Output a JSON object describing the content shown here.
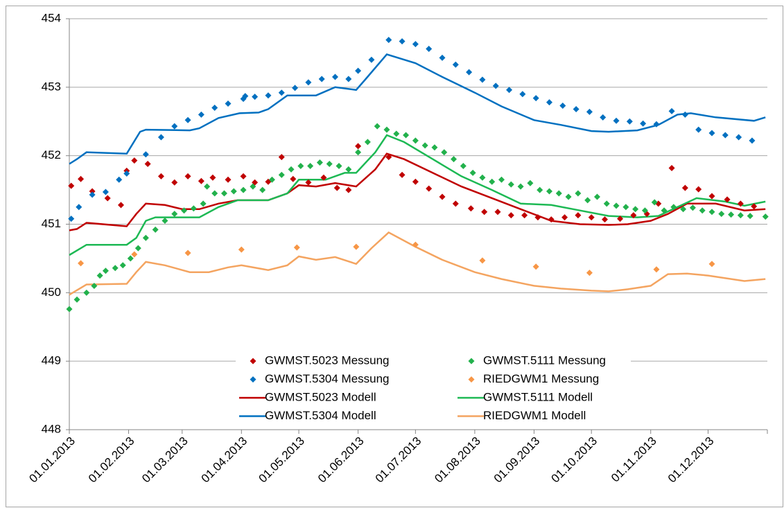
{
  "chart_data": {
    "type": "line",
    "xlim": [
      "2013-01-01",
      "2014-01-01"
    ],
    "xticks": [
      {
        "value": "2013-01-01",
        "label": "01.01.2013"
      },
      {
        "value": "2013-02-01",
        "label": "01.02.2013"
      },
      {
        "value": "2013-03-01",
        "label": "01.03.2013"
      },
      {
        "value": "2013-04-01",
        "label": "01.04.2013"
      },
      {
        "value": "2013-05-01",
        "label": "01.05.2013"
      },
      {
        "value": "2013-06-01",
        "label": "01.06.2013"
      },
      {
        "value": "2013-07-01",
        "label": "01.07.2013"
      },
      {
        "value": "2013-08-01",
        "label": "01.08.2013"
      },
      {
        "value": "2013-09-01",
        "label": "01.09.2013"
      },
      {
        "value": "2013-10-01",
        "label": "01.10.2013"
      },
      {
        "value": "2013-11-01",
        "label": "01.11.2013"
      },
      {
        "value": "2013-12-01",
        "label": "01.12.2013"
      },
      {
        "value": "2014-01-01",
        "label": null
      }
    ],
    "ylim": [
      448,
      454
    ],
    "yticks": [
      448,
      449,
      450,
      451,
      452,
      453,
      454
    ],
    "grid": true,
    "series": [
      {
        "name": "GWMST.5023 Messung",
        "style": "markers",
        "color": "#c00000",
        "x": [
          "2013-01-02",
          "2013-01-07",
          "2013-01-13",
          "2013-01-21",
          "2013-01-28",
          "2013-01-31",
          "2013-02-04",
          "2013-02-11",
          "2013-02-18",
          "2013-02-25",
          "2013-03-04",
          "2013-03-11",
          "2013-03-17",
          "2013-03-25",
          "2013-04-02",
          "2013-04-08",
          "2013-04-15",
          "2013-04-22",
          "2013-04-28",
          "2013-05-06",
          "2013-05-14",
          "2013-05-21",
          "2013-05-27",
          "2013-06-01",
          "2013-06-17",
          "2013-06-24",
          "2013-07-01",
          "2013-07-08",
          "2013-07-15",
          "2013-07-22",
          "2013-07-30",
          "2013-08-06",
          "2013-08-13",
          "2013-08-20",
          "2013-08-27",
          "2013-09-03",
          "2013-09-10",
          "2013-09-17",
          "2013-09-24",
          "2013-10-01",
          "2013-10-08",
          "2013-10-16",
          "2013-10-23",
          "2013-10-30",
          "2013-11-05",
          "2013-11-12",
          "2013-11-19",
          "2013-11-26",
          "2013-12-03",
          "2013-12-11",
          "2013-12-18",
          "2013-12-25"
        ],
        "values": [
          451.56,
          451.66,
          451.48,
          451.38,
          451.28,
          451.78,
          451.93,
          451.88,
          451.7,
          451.61,
          451.7,
          451.63,
          451.68,
          451.65,
          451.7,
          451.61,
          451.62,
          451.98,
          451.66,
          451.61,
          451.68,
          451.53,
          451.5,
          452.14,
          451.98,
          451.72,
          451.62,
          451.52,
          451.4,
          451.3,
          451.23,
          451.18,
          451.18,
          451.13,
          451.13,
          451.1,
          451.07,
          451.1,
          451.13,
          451.1,
          451.07,
          451.08,
          451.13,
          451.15,
          451.3,
          451.82,
          451.53,
          451.51,
          451.41,
          451.36,
          451.3,
          451.26
        ]
      },
      {
        "name": "GWMST.5111 Messung",
        "style": "markers",
        "color": "#22b14c",
        "x": [
          "2013-01-01",
          "2013-01-05",
          "2013-01-10",
          "2013-01-14",
          "2013-01-17",
          "2013-01-20",
          "2013-01-25",
          "2013-01-29",
          "2013-02-02",
          "2013-02-06",
          "2013-02-10",
          "2013-02-15",
          "2013-02-20",
          "2013-02-25",
          "2013-03-02",
          "2013-03-07",
          "2013-03-12",
          "2013-03-14",
          "2013-03-18",
          "2013-03-23",
          "2013-03-28",
          "2013-04-02",
          "2013-04-07",
          "2013-04-12",
          "2013-04-17",
          "2013-04-22",
          "2013-04-27",
          "2013-05-02",
          "2013-05-07",
          "2013-05-12",
          "2013-05-17",
          "2013-05-22",
          "2013-05-27",
          "2013-06-01",
          "2013-06-06",
          "2013-06-11",
          "2013-06-16",
          "2013-06-21",
          "2013-06-26",
          "2013-07-01",
          "2013-07-06",
          "2013-07-11",
          "2013-07-16",
          "2013-07-21",
          "2013-07-26",
          "2013-07-31",
          "2013-08-05",
          "2013-08-10",
          "2013-08-15",
          "2013-08-20",
          "2013-08-25",
          "2013-08-30",
          "2013-09-04",
          "2013-09-09",
          "2013-09-14",
          "2013-09-19",
          "2013-09-24",
          "2013-09-29",
          "2013-10-04",
          "2013-10-09",
          "2013-10-14",
          "2013-10-19",
          "2013-10-24",
          "2013-10-29",
          "2013-11-03",
          "2013-11-08",
          "2013-11-13",
          "2013-11-18",
          "2013-11-23",
          "2013-11-28",
          "2013-12-03",
          "2013-12-08",
          "2013-12-13",
          "2013-12-18",
          "2013-12-23",
          "2013-12-31"
        ],
        "values": [
          449.76,
          449.9,
          450.0,
          450.1,
          450.25,
          450.32,
          450.36,
          450.4,
          450.5,
          450.65,
          450.8,
          450.92,
          451.05,
          451.15,
          451.2,
          451.23,
          451.3,
          451.55,
          451.45,
          451.45,
          451.48,
          451.5,
          451.55,
          451.5,
          451.65,
          451.72,
          451.8,
          451.85,
          451.85,
          451.9,
          451.88,
          451.85,
          451.8,
          452.05,
          452.2,
          452.43,
          452.38,
          452.32,
          452.3,
          452.22,
          452.15,
          452.12,
          452.05,
          451.95,
          451.85,
          451.75,
          451.68,
          451.62,
          451.65,
          451.58,
          451.55,
          451.6,
          451.5,
          451.48,
          451.45,
          451.4,
          451.45,
          451.35,
          451.4,
          451.3,
          451.27,
          451.25,
          451.22,
          451.2,
          451.32,
          451.2,
          451.25,
          451.22,
          451.24,
          451.2,
          451.18,
          451.15,
          451.14,
          451.13,
          451.12,
          451.11
        ]
      },
      {
        "name": "GWMST.5304 Messung",
        "style": "markers",
        "color": "#0070c0",
        "x": [
          "2013-01-02",
          "2013-01-06",
          "2013-01-13",
          "2013-01-20",
          "2013-01-27",
          "2013-01-31",
          "2013-02-10",
          "2013-02-18",
          "2013-02-25",
          "2013-03-04",
          "2013-03-11",
          "2013-03-18",
          "2013-03-25",
          "2013-04-02",
          "2013-04-03",
          "2013-04-08",
          "2013-04-15",
          "2013-04-22",
          "2013-04-29",
          "2013-05-06",
          "2013-05-13",
          "2013-05-20",
          "2013-05-27",
          "2013-06-01",
          "2013-06-08",
          "2013-06-17",
          "2013-06-24",
          "2013-07-01",
          "2013-07-08",
          "2013-07-15",
          "2013-07-22",
          "2013-07-29",
          "2013-08-05",
          "2013-08-12",
          "2013-08-19",
          "2013-08-26",
          "2013-09-02",
          "2013-09-09",
          "2013-09-16",
          "2013-09-23",
          "2013-09-30",
          "2013-10-07",
          "2013-10-14",
          "2013-10-21",
          "2013-10-28",
          "2013-11-04",
          "2013-11-12",
          "2013-11-19",
          "2013-11-26",
          "2013-12-03",
          "2013-12-10",
          "2013-12-17",
          "2013-12-24"
        ],
        "values": [
          451.08,
          451.25,
          451.43,
          451.47,
          451.65,
          451.74,
          452.02,
          452.27,
          452.43,
          452.52,
          452.6,
          452.7,
          452.76,
          452.83,
          452.87,
          452.86,
          452.88,
          452.92,
          452.99,
          453.07,
          453.12,
          453.15,
          453.12,
          453.24,
          453.4,
          453.69,
          453.67,
          453.63,
          453.56,
          453.43,
          453.33,
          453.22,
          453.11,
          453.02,
          452.96,
          452.9,
          452.84,
          452.78,
          452.73,
          452.68,
          452.64,
          452.56,
          452.51,
          452.5,
          452.47,
          452.46,
          452.65,
          452.6,
          452.38,
          452.33,
          452.3,
          452.27,
          452.22
        ]
      },
      {
        "name": "RIEDGWM1 Messung",
        "style": "markers",
        "color": "#f79646",
        "x": [
          "2013-01-07",
          "2013-02-04",
          "2013-03-04",
          "2013-04-01",
          "2013-04-30",
          "2013-05-31",
          "2013-07-01",
          "2013-08-05",
          "2013-09-02",
          "2013-09-30",
          "2013-11-04",
          "2013-12-03"
        ],
        "values": [
          450.43,
          450.56,
          450.58,
          450.63,
          450.66,
          450.67,
          450.7,
          450.47,
          450.38,
          450.29,
          450.34,
          450.42
        ]
      },
      {
        "name": "GWMST.5023 Modell",
        "style": "line",
        "color": "#c00000",
        "x": [
          "2013-01-01",
          "2013-01-05",
          "2013-01-10",
          "2013-01-31",
          "2013-02-05",
          "2013-02-10",
          "2013-02-20",
          "2013-03-01",
          "2013-03-10",
          "2013-03-20",
          "2013-03-30",
          "2013-04-15",
          "2013-04-25",
          "2013-05-01",
          "2013-05-10",
          "2013-05-20",
          "2013-05-31",
          "2013-06-10",
          "2013-06-16",
          "2013-06-25",
          "2013-07-10",
          "2013-07-25",
          "2013-08-10",
          "2013-08-25",
          "2013-09-10",
          "2013-09-25",
          "2013-10-10",
          "2013-10-20",
          "2013-11-01",
          "2013-11-10",
          "2013-11-20",
          "2013-12-05",
          "2013-12-20",
          "2013-12-31"
        ],
        "values": [
          450.91,
          450.93,
          451.02,
          450.97,
          451.15,
          451.3,
          451.28,
          451.22,
          451.22,
          451.3,
          451.35,
          451.35,
          451.45,
          451.57,
          451.55,
          451.6,
          451.55,
          451.8,
          452.03,
          451.95,
          451.75,
          451.55,
          451.38,
          451.22,
          451.05,
          451.0,
          450.99,
          451.0,
          451.05,
          451.15,
          451.3,
          451.3,
          451.2,
          451.22
        ]
      },
      {
        "name": "GWMST.5111 Modell",
        "style": "line",
        "color": "#1db954",
        "x": [
          "2013-01-01",
          "2013-01-10",
          "2013-01-31",
          "2013-02-05",
          "2013-02-10",
          "2013-02-15",
          "2013-03-10",
          "2013-03-20",
          "2013-03-30",
          "2013-04-15",
          "2013-04-25",
          "2013-05-01",
          "2013-05-15",
          "2013-05-25",
          "2013-05-31",
          "2013-06-10",
          "2013-06-16",
          "2013-06-25",
          "2013-07-10",
          "2013-07-25",
          "2013-08-10",
          "2013-08-25",
          "2013-09-10",
          "2013-09-25",
          "2013-10-10",
          "2013-10-25",
          "2013-11-05",
          "2013-11-15",
          "2013-11-25",
          "2013-12-10",
          "2013-12-20",
          "2013-12-31"
        ],
        "values": [
          450.55,
          450.7,
          450.7,
          450.8,
          451.05,
          451.1,
          451.1,
          451.25,
          451.35,
          451.35,
          451.45,
          451.65,
          451.65,
          451.75,
          451.75,
          452.05,
          452.3,
          452.2,
          451.95,
          451.7,
          451.5,
          451.3,
          451.28,
          451.2,
          451.12,
          451.1,
          451.12,
          451.25,
          451.38,
          451.33,
          451.27,
          451.33
        ]
      },
      {
        "name": "GWMST.5304 Modell",
        "style": "line",
        "color": "#0070c0",
        "x": [
          "2013-01-01",
          "2013-01-05",
          "2013-01-10",
          "2013-01-31",
          "2013-02-07",
          "2013-02-10",
          "2013-03-05",
          "2013-03-10",
          "2013-03-20",
          "2013-03-31",
          "2013-04-10",
          "2013-04-15",
          "2013-04-25",
          "2013-05-10",
          "2013-05-20",
          "2013-05-31",
          "2013-06-05",
          "2013-06-16",
          "2013-07-01",
          "2013-07-15",
          "2013-08-01",
          "2013-08-15",
          "2013-09-01",
          "2013-09-15",
          "2013-10-01",
          "2013-10-10",
          "2013-10-25",
          "2013-11-05",
          "2013-11-15",
          "2013-11-22",
          "2013-12-05",
          "2013-12-25",
          "2013-12-31"
        ],
        "values": [
          451.88,
          451.95,
          452.05,
          452.03,
          452.35,
          452.38,
          452.37,
          452.4,
          452.55,
          452.62,
          452.63,
          452.68,
          452.88,
          452.88,
          453.0,
          452.96,
          453.12,
          453.48,
          453.35,
          453.15,
          452.92,
          452.72,
          452.52,
          452.45,
          452.36,
          452.35,
          452.37,
          452.45,
          452.6,
          452.62,
          452.56,
          452.51,
          452.56
        ]
      },
      {
        "name": "RIEDGWM1 Modell",
        "style": "line",
        "color": "#f4a460",
        "x": [
          "2013-01-01",
          "2013-01-10",
          "2013-01-31",
          "2013-02-05",
          "2013-02-10",
          "2013-02-20",
          "2013-03-05",
          "2013-03-15",
          "2013-03-25",
          "2013-04-01",
          "2013-04-15",
          "2013-04-25",
          "2013-05-01",
          "2013-05-10",
          "2013-05-20",
          "2013-05-31",
          "2013-06-08",
          "2013-06-17",
          "2013-07-01",
          "2013-07-15",
          "2013-08-01",
          "2013-08-15",
          "2013-09-01",
          "2013-09-15",
          "2013-10-01",
          "2013-10-10",
          "2013-10-20",
          "2013-11-01",
          "2013-11-10",
          "2013-11-20",
          "2013-12-01",
          "2013-12-20",
          "2013-12-31"
        ],
        "values": [
          449.97,
          450.12,
          450.13,
          450.3,
          450.45,
          450.4,
          450.3,
          450.3,
          450.37,
          450.4,
          450.33,
          450.4,
          450.53,
          450.48,
          450.52,
          450.42,
          450.65,
          450.88,
          450.67,
          450.48,
          450.3,
          450.2,
          450.1,
          450.06,
          450.03,
          450.02,
          450.05,
          450.1,
          450.27,
          450.28,
          450.25,
          450.17,
          450.2
        ]
      }
    ]
  }
}
